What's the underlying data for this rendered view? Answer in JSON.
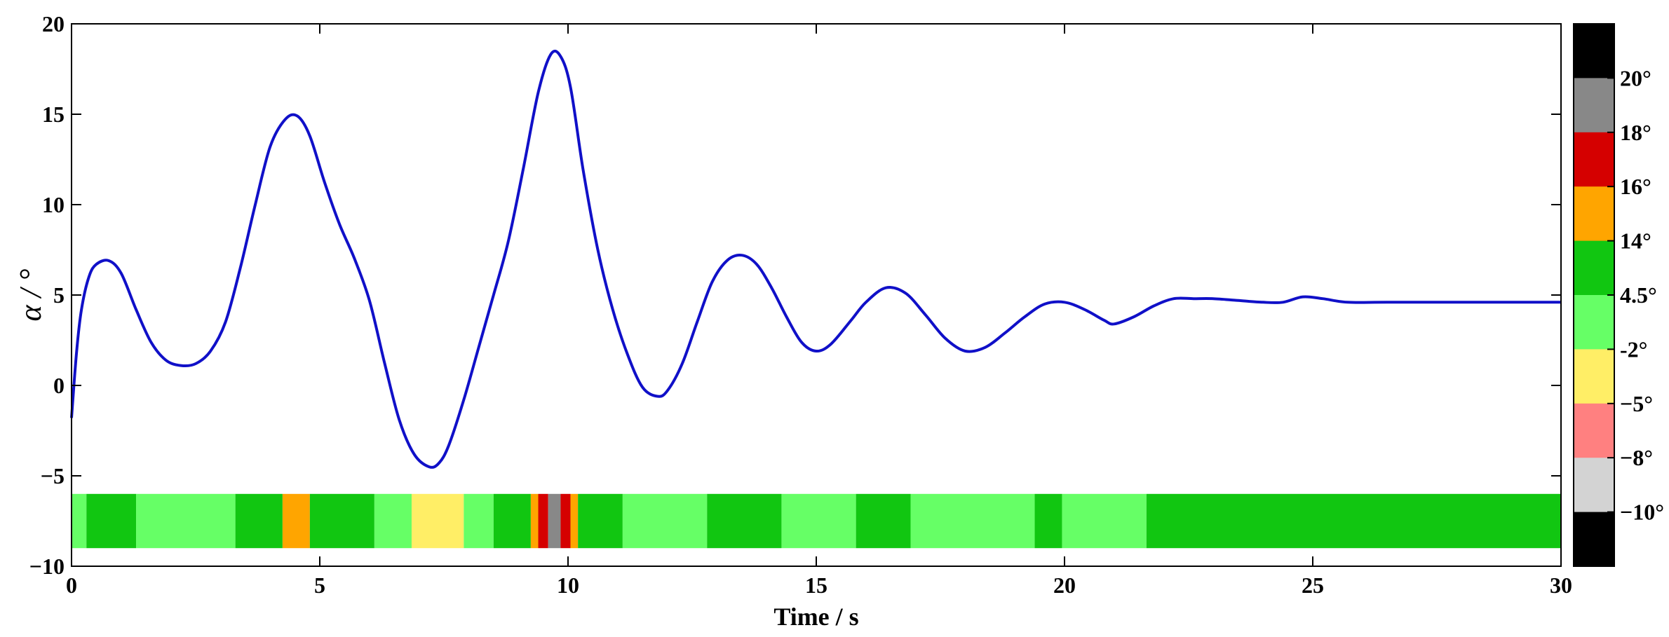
{
  "chart_data": {
    "type": "line",
    "xlabel": "Time / s",
    "ylabel": "α / °",
    "xlim": [
      0,
      30
    ],
    "ylim": [
      -10,
      20
    ],
    "xticks": [
      0,
      5,
      10,
      15,
      20,
      25,
      30
    ],
    "yticks": [
      -10,
      -5,
      0,
      5,
      10,
      15,
      20
    ],
    "xtick_labels": [
      "0",
      "5",
      "10",
      "15",
      "20",
      "25",
      "30"
    ],
    "ytick_labels": [
      "−10",
      "−5",
      "0",
      "5",
      "10",
      "15",
      "20"
    ],
    "grid": false,
    "series": [
      {
        "color": "#1010c8",
        "x": [
          0,
          0.1,
          0.2,
          0.35,
          0.5,
          0.75,
          1.0,
          1.3,
          1.6,
          1.9,
          2.2,
          2.5,
          2.8,
          3.1,
          3.4,
          3.7,
          4.0,
          4.3,
          4.55,
          4.8,
          5.1,
          5.4,
          5.7,
          6.0,
          6.3,
          6.6,
          6.9,
          7.2,
          7.4,
          7.6,
          7.9,
          8.2,
          8.5,
          8.8,
          9.1,
          9.4,
          9.65,
          9.85,
          10.05,
          10.3,
          10.6,
          10.9,
          11.2,
          11.5,
          11.8,
          12.0,
          12.3,
          12.6,
          12.9,
          13.2,
          13.5,
          13.8,
          14.1,
          14.4,
          14.7,
          15.0,
          15.3,
          15.7,
          16.0,
          16.4,
          16.8,
          17.2,
          17.6,
          18.0,
          18.4,
          18.8,
          19.2,
          19.6,
          20.0,
          20.4,
          20.8,
          21.0,
          21.4,
          21.8,
          22.2,
          22.6,
          23.0,
          23.5,
          24.0,
          24.4,
          24.8,
          25.2,
          25.7,
          26.5,
          28.0,
          30.0
        ],
        "y": [
          -1.8,
          1.8,
          4.2,
          6.0,
          6.7,
          6.9,
          6.2,
          4.2,
          2.4,
          1.4,
          1.1,
          1.2,
          1.9,
          3.5,
          6.5,
          10.0,
          13.2,
          14.7,
          14.9,
          13.8,
          11.2,
          8.9,
          7.0,
          4.7,
          1.3,
          -1.9,
          -3.8,
          -4.5,
          -4.3,
          -3.3,
          -0.8,
          2.1,
          5.0,
          8.0,
          12.0,
          16.2,
          18.3,
          18.2,
          16.5,
          12.0,
          7.5,
          4.2,
          1.7,
          -0.1,
          -0.6,
          -0.3,
          1.2,
          3.5,
          5.7,
          6.9,
          7.2,
          6.7,
          5.4,
          3.8,
          2.4,
          1.9,
          2.3,
          3.6,
          4.6,
          5.4,
          5.1,
          3.9,
          2.6,
          1.9,
          2.1,
          2.9,
          3.8,
          4.5,
          4.6,
          4.2,
          3.6,
          3.4,
          3.8,
          4.4,
          4.8,
          4.8,
          4.8,
          4.7,
          4.6,
          4.6,
          4.9,
          4.8,
          4.6,
          4.6,
          4.6,
          4.6
        ]
      }
    ],
    "state_bar": {
      "y_range": [
        -9,
        -6
      ],
      "segments": [
        {
          "x0": 0.0,
          "x1": 0.3,
          "color": "#66ff66"
        },
        {
          "x0": 0.3,
          "x1": 1.3,
          "color": "#11c611"
        },
        {
          "x0": 1.3,
          "x1": 3.3,
          "color": "#66ff66"
        },
        {
          "x0": 3.3,
          "x1": 4.25,
          "color": "#11c611"
        },
        {
          "x0": 4.25,
          "x1": 4.8,
          "color": "#ffa500"
        },
        {
          "x0": 4.8,
          "x1": 6.1,
          "color": "#11c611"
        },
        {
          "x0": 6.1,
          "x1": 6.85,
          "color": "#66ff66"
        },
        {
          "x0": 6.85,
          "x1": 7.9,
          "color": "#ffee66"
        },
        {
          "x0": 7.9,
          "x1": 8.5,
          "color": "#66ff66"
        },
        {
          "x0": 8.5,
          "x1": 9.25,
          "color": "#11c611"
        },
        {
          "x0": 9.25,
          "x1": 9.4,
          "color": "#ffa500"
        },
        {
          "x0": 9.4,
          "x1": 9.6,
          "color": "#d50000"
        },
        {
          "x0": 9.6,
          "x1": 9.85,
          "color": "#888888"
        },
        {
          "x0": 9.85,
          "x1": 10.05,
          "color": "#d50000"
        },
        {
          "x0": 10.05,
          "x1": 10.2,
          "color": "#ffa500"
        },
        {
          "x0": 10.2,
          "x1": 11.1,
          "color": "#11c611"
        },
        {
          "x0": 11.1,
          "x1": 12.8,
          "color": "#66ff66"
        },
        {
          "x0": 12.8,
          "x1": 14.3,
          "color": "#11c611"
        },
        {
          "x0": 14.3,
          "x1": 15.8,
          "color": "#66ff66"
        },
        {
          "x0": 15.8,
          "x1": 16.9,
          "color": "#11c611"
        },
        {
          "x0": 16.9,
          "x1": 19.4,
          "color": "#66ff66"
        },
        {
          "x0": 19.4,
          "x1": 19.95,
          "color": "#11c611"
        },
        {
          "x0": 19.95,
          "x1": 21.65,
          "color": "#66ff66"
        },
        {
          "x0": 21.65,
          "x1": 30.0,
          "color": "#11c611"
        }
      ]
    },
    "colorbar": {
      "colors": [
        "#000000",
        "#888888",
        "#d50000",
        "#ffa500",
        "#11c611",
        "#66ff66",
        "#ffee66",
        "#ff8080",
        "#d3d3d3",
        "#000000"
      ],
      "labels": [
        "20°",
        "18°",
        "16°",
        "14°",
        "4.5°",
        "-2°",
        "−5°",
        "−8°",
        "−10°"
      ]
    }
  }
}
